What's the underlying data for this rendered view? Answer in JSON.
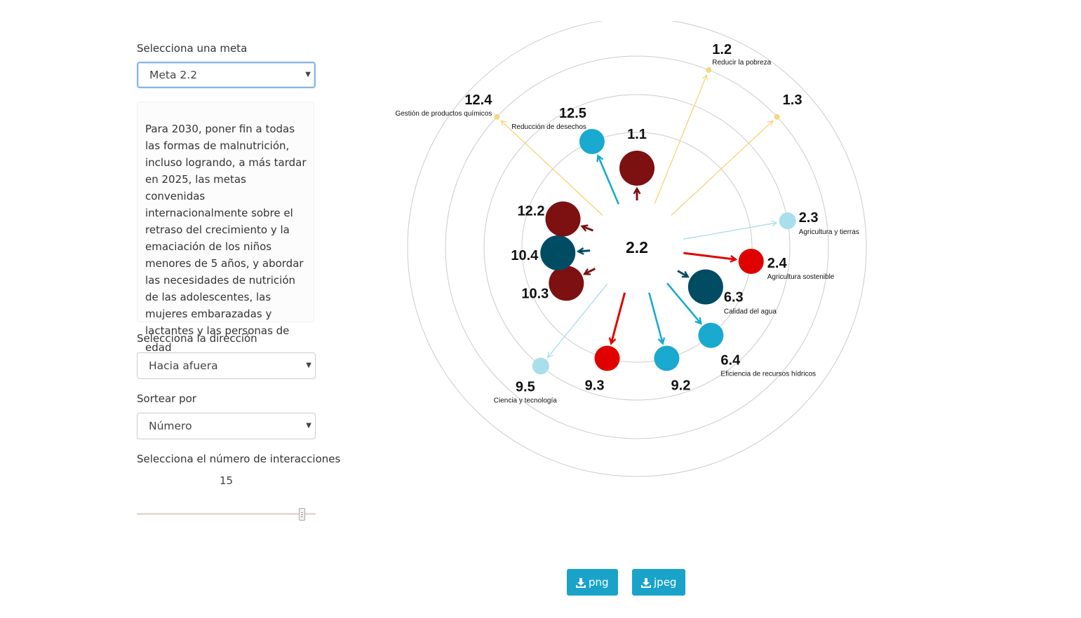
{
  "sidebar": {
    "goal_label": "Selecciona una meta",
    "goal_value": "Meta 2.2",
    "description": "Para 2030, poner fin a todas las formas de malnutrición, incluso logrando, a más tardar en 2025, las metas convenidas internacionalmente sobre el retraso del crecimiento y la emaciación de los niños menores de 5 años, y abordar las necesidades de nutrición de las adolescentes, las mujeres embarazadas y lactantes y las personas de edad",
    "direction_label": "Selecciona la dirección",
    "direction_value": "Hacia afuera",
    "sort_label": "Sortear por",
    "sort_value": "Número",
    "interactions_label": "Selecciona el número de interacciones",
    "interactions_value": "15",
    "interactions_fraction": 1.0
  },
  "buttons": {
    "png": "png",
    "jpeg": "jpeg"
  },
  "icons": {
    "caret": "caret-down-icon",
    "download": "download-icon"
  },
  "colors": {
    "dark_red": "#7d1010",
    "red": "#e00000",
    "dark_teal": "#004c63",
    "teal": "#1aa9cf",
    "light_blue": "#a9dfeb",
    "yellow": "#f5d77d",
    "ring": "#cccccc",
    "button": "#1aa3c9"
  },
  "chart_data": {
    "type": "radial-network",
    "center": "2.2",
    "nodes": [
      {
        "id": "1.1",
        "desc": "",
        "level": 3,
        "color": "dark_red"
      },
      {
        "id": "1.2",
        "desc": "Reducir la pobreza",
        "level": -1,
        "color": "yellow"
      },
      {
        "id": "1.3",
        "desc": "",
        "level": -1,
        "color": "yellow"
      },
      {
        "id": "2.3",
        "desc": "Agricultura y tierras",
        "level": 1,
        "color": "light_blue"
      },
      {
        "id": "2.4",
        "desc": "Agricultura sostenible",
        "level": 2,
        "color": "red"
      },
      {
        "id": "6.3",
        "desc": "Calidad del agua",
        "level": 3,
        "color": "dark_teal"
      },
      {
        "id": "6.4",
        "desc": "Eficiencia de recursos hídricos",
        "level": 2,
        "color": "teal"
      },
      {
        "id": "9.2",
        "desc": "",
        "level": 2,
        "color": "teal"
      },
      {
        "id": "9.3",
        "desc": "",
        "level": 2,
        "color": "red"
      },
      {
        "id": "9.5",
        "desc": "Ciencia y tecnología",
        "level": 1,
        "color": "light_blue"
      },
      {
        "id": "10.3",
        "desc": "",
        "level": 3,
        "color": "dark_red"
      },
      {
        "id": "10.4",
        "desc": "",
        "level": 3,
        "color": "dark_teal"
      },
      {
        "id": "12.2",
        "desc": "",
        "level": 3,
        "color": "dark_red"
      },
      {
        "id": "12.5",
        "desc": "Reducción de desechos",
        "level": 2,
        "color": "teal"
      },
      {
        "id": "12.4",
        "desc": "Gestión de productos químicos",
        "level": -1,
        "color": "yellow"
      }
    ]
  }
}
